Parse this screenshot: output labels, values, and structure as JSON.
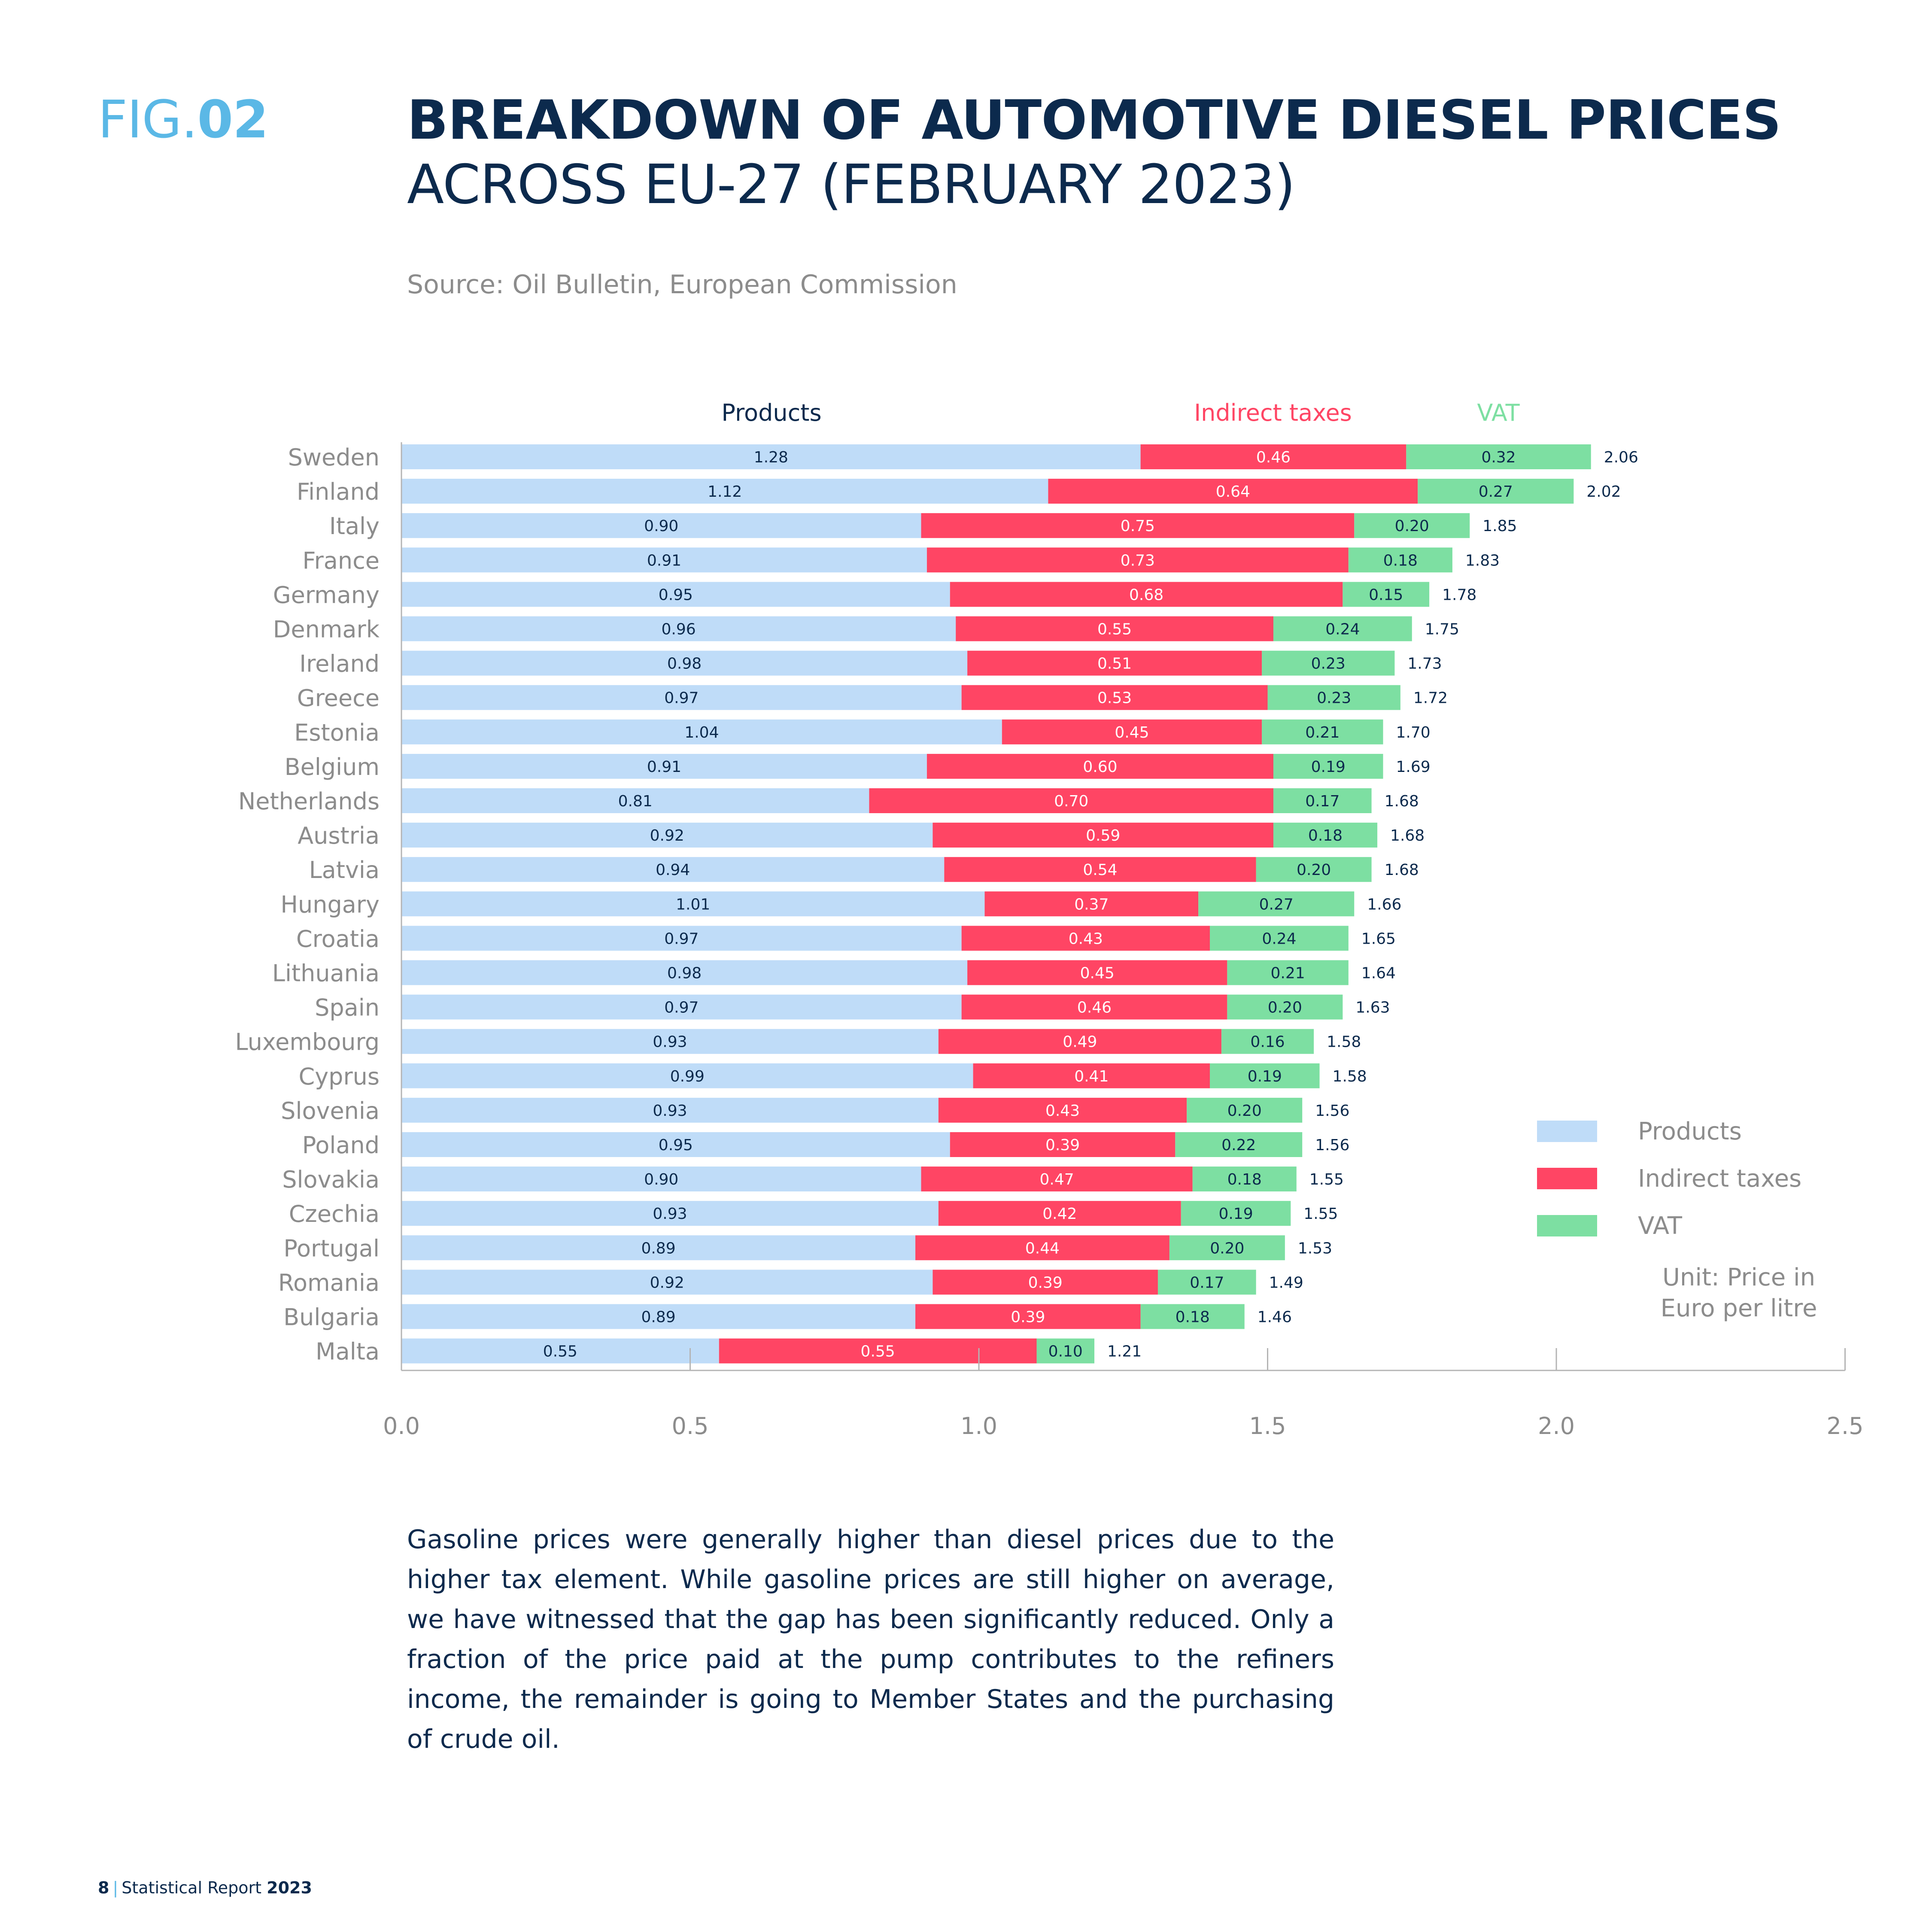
{
  "header": {
    "fig_prefix": "FIG.",
    "fig_number": "02",
    "title_line1": "BREAKDOWN OF AUTOMOTIVE DIESEL PRICES",
    "title_line2": "ACROSS EU-27 (FEBRUARY 2023)",
    "source": "Source: Oil Bulletin, European Commission"
  },
  "chart_data": {
    "type": "bar",
    "orientation": "horizontal",
    "stacked": true,
    "categories": [
      "Sweden",
      "Finland",
      "Italy",
      "France",
      "Germany",
      "Denmark",
      "Ireland",
      "Greece",
      "Estonia",
      "Belgium",
      "Netherlands",
      "Austria",
      "Latvia",
      "Hungary",
      "Croatia",
      "Lithuania",
      "Spain",
      "Luxembourg",
      "Cyprus",
      "Slovenia",
      "Poland",
      "Slovakia",
      "Czechia",
      "Portugal",
      "Romania",
      "Bulgaria",
      "Malta"
    ],
    "series": [
      {
        "name": "Products",
        "color": "#bfdcf8",
        "values": [
          1.28,
          1.12,
          0.9,
          0.91,
          0.95,
          0.96,
          0.98,
          0.97,
          1.04,
          0.91,
          0.81,
          0.92,
          0.94,
          1.01,
          0.97,
          0.98,
          0.97,
          0.93,
          0.99,
          0.93,
          0.95,
          0.9,
          0.93,
          0.89,
          0.92,
          0.89,
          0.55
        ]
      },
      {
        "name": "Indirect taxes",
        "color": "#ff4564",
        "values": [
          0.46,
          0.64,
          0.75,
          0.73,
          0.68,
          0.55,
          0.51,
          0.53,
          0.45,
          0.6,
          0.7,
          0.59,
          0.54,
          0.37,
          0.43,
          0.45,
          0.46,
          0.49,
          0.41,
          0.43,
          0.39,
          0.47,
          0.42,
          0.44,
          0.39,
          0.39,
          0.55
        ]
      },
      {
        "name": "VAT",
        "color": "#7ddfa2",
        "values": [
          0.32,
          0.27,
          0.2,
          0.18,
          0.15,
          0.24,
          0.23,
          0.23,
          0.21,
          0.19,
          0.17,
          0.18,
          0.2,
          0.27,
          0.24,
          0.21,
          0.2,
          0.16,
          0.19,
          0.2,
          0.22,
          0.18,
          0.19,
          0.2,
          0.17,
          0.18,
          0.1
        ]
      }
    ],
    "totals": [
      2.06,
      2.02,
      1.85,
      1.83,
      1.78,
      1.75,
      1.73,
      1.72,
      1.7,
      1.69,
      1.68,
      1.68,
      1.68,
      1.66,
      1.65,
      1.64,
      1.63,
      1.58,
      1.58,
      1.56,
      1.56,
      1.55,
      1.55,
      1.53,
      1.49,
      1.46,
      1.21
    ],
    "xlim": [
      0,
      2.5
    ],
    "x_ticks": [
      "0.0",
      "0.5",
      "1.0",
      "1.5",
      "2.0",
      "2.5"
    ],
    "header_labels": [
      {
        "text": "Products",
        "color": "#0c2a4d"
      },
      {
        "text": "Indirect taxes",
        "color": "#ff4564"
      },
      {
        "text": "VAT",
        "color": "#7ddfa2"
      }
    ],
    "legend": [
      {
        "label": "Products",
        "color": "#bfdcf8"
      },
      {
        "label": "Indirect taxes",
        "color": "#ff4564"
      },
      {
        "label": "VAT",
        "color": "#7ddfa2"
      }
    ],
    "legend_position": "right",
    "unit_note": "Unit: Price in Euro per litre",
    "grid": false
  },
  "body_text": "Gasoline prices were generally higher than diesel prices due to the higher tax element. While gasoline prices are still higher on average, we have witnessed that the gap has been significantly reduced. Only a fraction of the price paid at the pump contributes to the refiners income, the remainder is going to Member States and the purchasing of crude oil.",
  "footer": {
    "page": "8",
    "separator": "|",
    "report": "Statistical Report",
    "year": "2023"
  }
}
